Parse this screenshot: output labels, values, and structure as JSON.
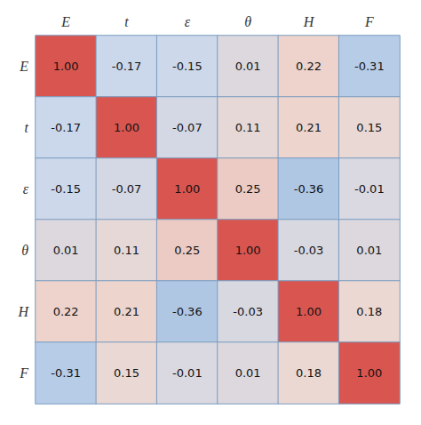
{
  "chart_data": {
    "type": "heatmap",
    "x_categories": [
      "E",
      "t",
      "ε",
      "θ",
      "H",
      "F"
    ],
    "y_categories": [
      "E",
      "t",
      "ε",
      "θ",
      "H",
      "F"
    ],
    "matrix": [
      [
        1.0,
        -0.17,
        -0.15,
        0.01,
        0.22,
        -0.31
      ],
      [
        -0.17,
        1.0,
        -0.07,
        0.11,
        0.21,
        0.15
      ],
      [
        -0.15,
        -0.07,
        1.0,
        0.25,
        -0.36,
        -0.01
      ],
      [
        0.01,
        0.11,
        0.25,
        1.0,
        -0.03,
        0.01
      ],
      [
        0.22,
        0.21,
        -0.36,
        -0.03,
        1.0,
        0.18
      ],
      [
        -0.31,
        0.15,
        -0.01,
        0.01,
        0.18,
        1.0
      ]
    ],
    "value_labels": [
      [
        "1.00",
        "-0.17",
        "-0.15",
        "0.01",
        "0.22",
        "-0.31"
      ],
      [
        "-0.17",
        "1.00",
        "-0.07",
        "0.11",
        "0.21",
        "0.15"
      ],
      [
        "-0.15",
        "-0.07",
        "1.00",
        "0.25",
        "-0.36",
        "-0.01"
      ],
      [
        "0.01",
        "0.11",
        "0.25",
        "1.00",
        "-0.03",
        "0.01"
      ],
      [
        "0.22",
        "0.21",
        "-0.36",
        "-0.03",
        "1.00",
        "0.18"
      ],
      [
        "-0.31",
        "0.15",
        "-0.01",
        "0.01",
        "0.18",
        "1.00"
      ]
    ],
    "data_labels": true,
    "color_range": [
      -1,
      1
    ],
    "colors": [
      "#4A6FA5",
      "#8BADD4",
      "#C8D8EE",
      "#EED8D0",
      "#D97068",
      "#D95550"
    ],
    "grid_color": "#7A9CC0",
    "text_color": "#111111"
  }
}
